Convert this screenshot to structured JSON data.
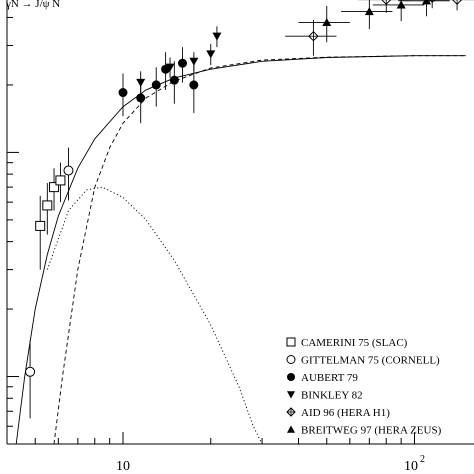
{
  "chart_data": {
    "type": "scatter",
    "title": "γN → J/ψ N",
    "xlabel": "",
    "ylabel": "",
    "x_scale": "log",
    "y_scale": "log",
    "xlim": [
      4.0,
      160.0
    ],
    "ylim": [
      0.5,
      60.0
    ],
    "x_ticks": [
      {
        "value": 10,
        "base": "10",
        "exp": ""
      },
      {
        "value": 100,
        "base": "10",
        "exp": "2"
      }
    ],
    "legend_position": "bottom-right",
    "series": [
      {
        "name": "CAMERINI 75 (SLAC)",
        "marker": "open-square",
        "points": [
          {
            "x": 5.2,
            "y": 4.7,
            "yerr": 1.7
          },
          {
            "x": 5.5,
            "y": 5.8,
            "yerr": 1.5
          },
          {
            "x": 5.8,
            "y": 7.0,
            "yerr": 1.5
          },
          {
            "x": 6.1,
            "y": 7.5,
            "yerr": 1.5
          }
        ]
      },
      {
        "name": "GITTELMAN 75 (CORNELL)",
        "marker": "open-circle",
        "points": [
          {
            "x": 4.8,
            "y": 1.05,
            "yerr": 0.4
          },
          {
            "x": 6.5,
            "y": 8.3,
            "yerr": 2.2
          }
        ]
      },
      {
        "name": "AUBERT 79",
        "marker": "filled-circle",
        "points": [
          {
            "x": 10.0,
            "y": 18.5,
            "yerr": 4.0
          },
          {
            "x": 11.5,
            "y": 17.5,
            "yerr": 4.0
          },
          {
            "x": 13.0,
            "y": 20.0,
            "yerr": 4.0
          },
          {
            "x": 14.0,
            "y": 23.5,
            "yerr": 4.5
          },
          {
            "x": 15.0,
            "y": 21.0,
            "yerr": 4.5
          },
          {
            "x": 16.0,
            "y": 25.0,
            "yerr": 4.5
          },
          {
            "x": 17.5,
            "y": 20.0,
            "yerr": 5.0
          }
        ]
      },
      {
        "name": "BINKLEY 82",
        "marker": "filled-triangle-down",
        "points": [
          {
            "x": 11.5,
            "y": 20.5,
            "yerr": 2.5
          },
          {
            "x": 14.5,
            "y": 24.0,
            "yerr": 2.5
          },
          {
            "x": 17.5,
            "y": 25.5,
            "yerr": 2.5
          },
          {
            "x": 20.0,
            "y": 27.5,
            "yerr": 3.0
          },
          {
            "x": 21.0,
            "y": 33.0,
            "yerr": 3.5
          }
        ]
      },
      {
        "name": "AID 96 (HERA H1)",
        "marker": "open-diamond-cross",
        "points": [
          {
            "x": 45.0,
            "y": 33.0,
            "yerr": 6.0
          },
          {
            "x": 80.0,
            "y": 48.0,
            "yerr": 6.0
          },
          {
            "x": 115.0,
            "y": 49.0,
            "yerr": 5.0
          },
          {
            "x": 140.0,
            "y": 48.0,
            "yerr": 5.0
          }
        ]
      },
      {
        "name": "BREITWEG 97 (HERA ZEUS)",
        "marker": "filled-triangle-up",
        "points": [
          {
            "x": 50.0,
            "y": 38.0,
            "yerr": 7.0
          },
          {
            "x": 70.0,
            "y": 42.5,
            "yerr": 7.0
          },
          {
            "x": 90.0,
            "y": 45.5,
            "yerr": 7.0
          },
          {
            "x": 110.0,
            "y": 47.5,
            "yerr": 7.0
          }
        ]
      }
    ],
    "curves": [
      {
        "style": "solid",
        "points": [
          [
            4.3,
            0.5
          ],
          [
            4.6,
            1.0
          ],
          [
            5.0,
            2.0
          ],
          [
            5.5,
            3.5
          ],
          [
            6.0,
            5.2
          ],
          [
            7.0,
            8.5
          ],
          [
            8.0,
            11.5
          ],
          [
            10.0,
            16.0
          ],
          [
            12.0,
            19.0
          ],
          [
            15.0,
            21.5
          ],
          [
            20.0,
            23.5
          ],
          [
            30.0,
            25.5
          ],
          [
            50.0,
            26.5
          ],
          [
            100.0,
            27.0
          ],
          [
            150.0,
            27.0
          ]
        ]
      },
      {
        "style": "dashed",
        "points": [
          [
            5.8,
            0.5
          ],
          [
            6.2,
            1.0
          ],
          [
            7.0,
            3.0
          ],
          [
            8.0,
            7.0
          ],
          [
            9.0,
            10.5
          ],
          [
            10.0,
            13.5
          ],
          [
            12.0,
            17.5
          ],
          [
            15.0,
            20.8
          ],
          [
            20.0,
            23.8
          ],
          [
            30.0,
            25.8
          ],
          [
            50.0,
            26.6
          ],
          [
            100.0,
            27.0
          ],
          [
            150.0,
            27.0
          ]
        ]
      },
      {
        "style": "dotted",
        "points": [
          [
            5.5,
            3.0
          ],
          [
            6.5,
            5.5
          ],
          [
            7.5,
            6.8
          ],
          [
            8.5,
            7.0
          ],
          [
            10.0,
            6.3
          ],
          [
            12.0,
            5.0
          ],
          [
            15.0,
            3.3
          ],
          [
            20.0,
            1.7
          ],
          [
            25.0,
            0.9
          ],
          [
            28.0,
            0.6
          ],
          [
            30.0,
            0.5
          ]
        ]
      }
    ]
  }
}
